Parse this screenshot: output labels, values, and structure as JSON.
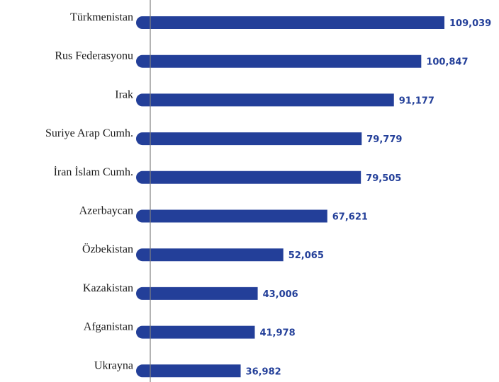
{
  "chart_data": {
    "type": "bar",
    "orientation": "horizontal",
    "categories": [
      "Türkmenistan",
      "Rus Federasyonu",
      "Irak",
      "Suriye Arap Cumh.",
      "İran İslam Cumh.",
      "Azerbaycan",
      "Özbekistan",
      "Kazakistan",
      "Afganistan",
      "Ukrayna"
    ],
    "values": [
      109039,
      100847,
      91177,
      79779,
      79505,
      67621,
      52065,
      43006,
      41978,
      36982
    ],
    "value_labels": [
      "109,039",
      "100,847",
      "91,177",
      "79,779",
      "79,505",
      "67,621",
      "52,065",
      "43,006",
      "41,978",
      "36,982"
    ],
    "title": "",
    "xlabel": "",
    "ylabel": "",
    "xlim": [
      0,
      109039
    ],
    "grid": false,
    "legend": "none",
    "colors": {
      "bar": "#233f99",
      "value_text": "#233f99",
      "axis": "#808080",
      "label_text": "#1a1a1a"
    }
  }
}
